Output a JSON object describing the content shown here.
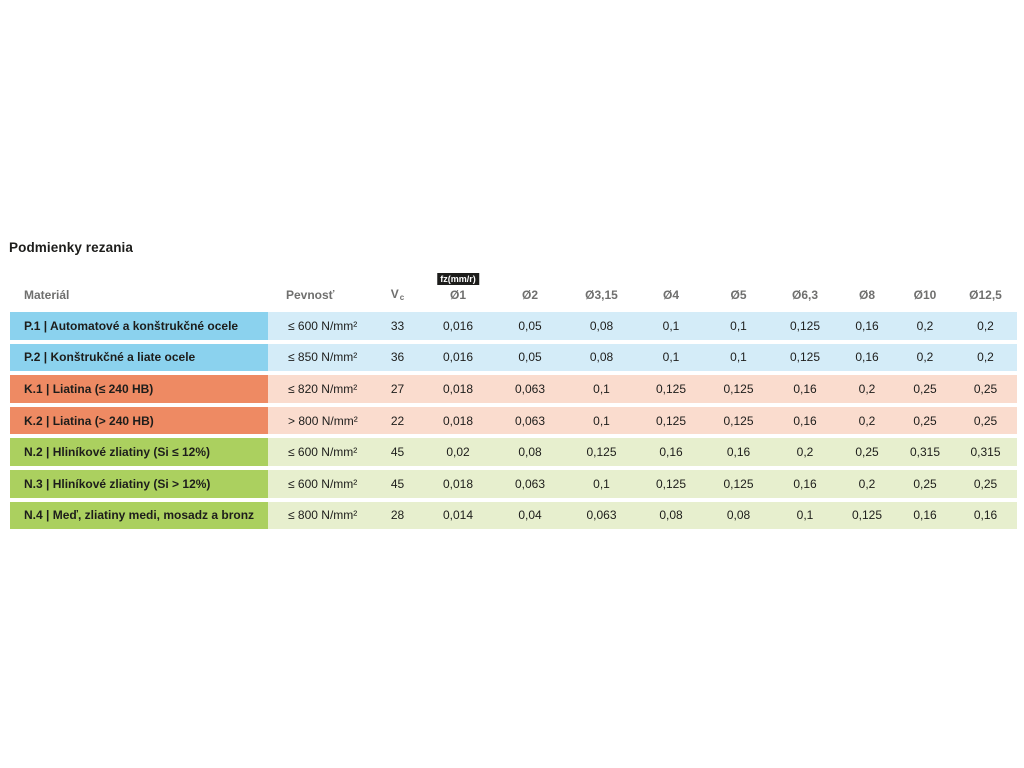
{
  "page": {
    "title": "Podmienky rezania"
  },
  "table": {
    "unit_badge": "fz(mm/r)",
    "headers": {
      "material": "Materiál",
      "strength": "Pevnosť",
      "vc_main": "V",
      "vc_sub": "c",
      "diameters": [
        "Ø1",
        "Ø2",
        "Ø3,15",
        "Ø4",
        "Ø5",
        "Ø6,3",
        "Ø8",
        "Ø10",
        "Ø12,5"
      ]
    },
    "colors": {
      "p_dark": "#8bd2ee",
      "p_light": "#d4ecf8",
      "k_dark": "#ee8a63",
      "k_light": "#fadcce",
      "n_dark": "#abd05f",
      "n_light": "#e7efce",
      "text_dark": "#1d1d1b",
      "header_gray": "#6f6f6e",
      "badge_bg": "#1d1d1b",
      "badge_text": "#ffffff"
    },
    "rows": [
      {
        "id": "p1",
        "group": "p",
        "material": "P.1 | Automatové a konštrukčné ocele",
        "strength": "≤ 600 N/mm²",
        "vc": "33",
        "values": [
          "0,016",
          "0,05",
          "0,08",
          "0,1",
          "0,1",
          "0,125",
          "0,16",
          "0,2",
          "0,2"
        ]
      },
      {
        "id": "p2",
        "group": "p",
        "material": "P.2 | Konštrukčné a liate ocele",
        "strength": "≤ 850 N/mm²",
        "vc": "36",
        "values": [
          "0,016",
          "0,05",
          "0,08",
          "0,1",
          "0,1",
          "0,125",
          "0,16",
          "0,2",
          "0,2"
        ]
      },
      {
        "id": "k1",
        "group": "k",
        "material": "K.1 | Liatina (≤ 240 HB)",
        "strength": "≤ 820 N/mm²",
        "vc": "27",
        "values": [
          "0,018",
          "0,063",
          "0,1",
          "0,125",
          "0,125",
          "0,16",
          "0,2",
          "0,25",
          "0,25"
        ]
      },
      {
        "id": "k2",
        "group": "k",
        "material": "K.2 | Liatina (> 240 HB)",
        "strength": "> 800 N/mm²",
        "vc": "22",
        "values": [
          "0,018",
          "0,063",
          "0,1",
          "0,125",
          "0,125",
          "0,16",
          "0,2",
          "0,25",
          "0,25"
        ]
      },
      {
        "id": "n2",
        "group": "n",
        "material": "N.2 | Hliníkové zliatiny (Si ≤ 12%)",
        "strength": "≤ 600 N/mm²",
        "vc": "45",
        "values": [
          "0,02",
          "0,08",
          "0,125",
          "0,16",
          "0,16",
          "0,2",
          "0,25",
          "0,315",
          "0,315"
        ]
      },
      {
        "id": "n3",
        "group": "n",
        "material": "N.3 | Hliníkové zliatiny (Si > 12%)",
        "strength": "≤ 600 N/mm²",
        "vc": "45",
        "values": [
          "0,018",
          "0,063",
          "0,1",
          "0,125",
          "0,125",
          "0,16",
          "0,2",
          "0,25",
          "0,25"
        ]
      },
      {
        "id": "n4",
        "group": "n",
        "material": "N.4 | Meď, zliatiny medi, mosadz a bronz",
        "strength": "≤ 800 N/mm²",
        "vc": "28",
        "values": [
          "0,014",
          "0,04",
          "0,063",
          "0,08",
          "0,08",
          "0,1",
          "0,125",
          "0,16",
          "0,16"
        ]
      }
    ]
  },
  "chart_data": {
    "type": "table",
    "title": "Podmienky rezania",
    "feed_unit": "fz(mm/r)",
    "columns": [
      "Materiál",
      "Pevnosť",
      "Vc",
      "Ø1",
      "Ø2",
      "Ø3,15",
      "Ø4",
      "Ø5",
      "Ø6,3",
      "Ø8",
      "Ø10",
      "Ø12,5"
    ],
    "rows": [
      [
        "P.1 | Automatové a konštrukčné ocele",
        "≤ 600 N/mm²",
        "33",
        "0,016",
        "0,05",
        "0,08",
        "0,1",
        "0,1",
        "0,125",
        "0,16",
        "0,2",
        "0,2"
      ],
      [
        "P.2 | Konštrukčné a liate ocele",
        "≤ 850 N/mm²",
        "36",
        "0,016",
        "0,05",
        "0,08",
        "0,1",
        "0,1",
        "0,125",
        "0,16",
        "0,2",
        "0,2"
      ],
      [
        "K.1 | Liatina (≤ 240 HB)",
        "≤ 820 N/mm²",
        "27",
        "0,018",
        "0,063",
        "0,1",
        "0,125",
        "0,125",
        "0,16",
        "0,2",
        "0,25",
        "0,25"
      ],
      [
        "K.2 | Liatina (> 240 HB)",
        "> 800 N/mm²",
        "22",
        "0,018",
        "0,063",
        "0,1",
        "0,125",
        "0,125",
        "0,16",
        "0,2",
        "0,25",
        "0,25"
      ],
      [
        "N.2 | Hliníkové zliatiny (Si ≤ 12%)",
        "≤ 600 N/mm²",
        "45",
        "0,02",
        "0,08",
        "0,125",
        "0,16",
        "0,16",
        "0,2",
        "0,25",
        "0,315",
        "0,315"
      ],
      [
        "N.3 | Hliníkové zliatiny (Si > 12%)",
        "≤ 600 N/mm²",
        "45",
        "0,018",
        "0,063",
        "0,1",
        "0,125",
        "0,125",
        "0,16",
        "0,2",
        "0,25",
        "0,25"
      ],
      [
        "N.4 | Meď, zliatiny medi, mosadz a bronz",
        "≤ 800 N/mm²",
        "28",
        "0,014",
        "0,04",
        "0,063",
        "0,08",
        "0,08",
        "0,1",
        "0,125",
        "0,16",
        "0,16"
      ]
    ],
    "row_group_colors": {
      "P": "blue",
      "K": "salmon",
      "N": "green"
    }
  }
}
